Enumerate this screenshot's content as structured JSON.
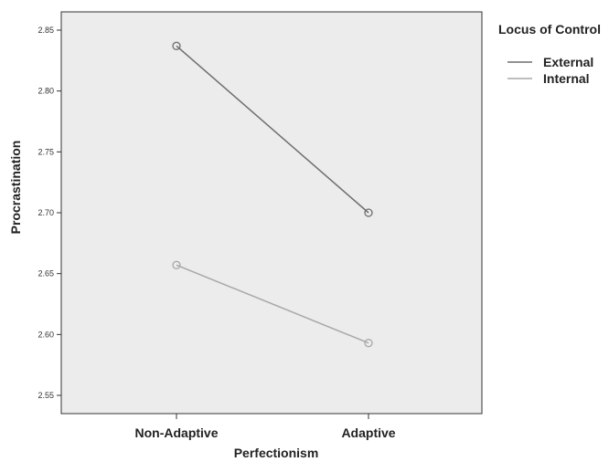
{
  "chart_data": {
    "type": "line",
    "xlabel": "Perfectionism",
    "ylabel": "Procrastination",
    "categories": [
      "Non-Adaptive",
      "Adaptive"
    ],
    "ylim": [
      2.535,
      2.865
    ],
    "yticks": [
      "2.55",
      "2.60",
      "2.65",
      "2.70",
      "2.75",
      "2.80",
      "2.85"
    ],
    "grid": false,
    "legend": {
      "title": "Locus of Control",
      "placement": "right"
    },
    "series": [
      {
        "name": "External",
        "values": [
          2.837,
          2.7
        ],
        "color": "#6e6e6e"
      },
      {
        "name": "Internal",
        "values": [
          2.657,
          2.593
        ],
        "color": "#a8a8a8"
      }
    ],
    "plot_background": "#ececec"
  }
}
